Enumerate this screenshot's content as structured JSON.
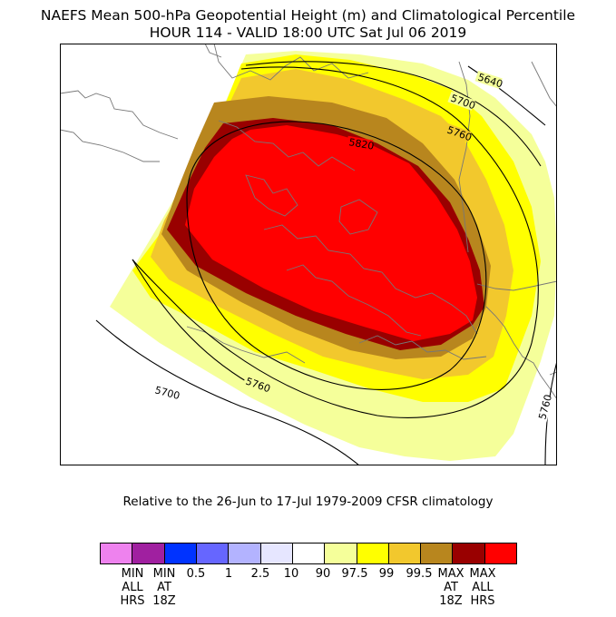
{
  "title": {
    "line1": "NAEFS Mean 500-hPa Geopotential Height (m) and Climatological Percentile",
    "line2": "HOUR 114 - VALID 18:00 UTC Sat Jul 06 2019"
  },
  "subtitle": "Relative to the 26-Jun to 17-Jul 1979-2009 CFSR climatology",
  "contours": {
    "c5640": "5640",
    "c5700_top": "5700",
    "c5760_top": "5760",
    "c5820": "5820",
    "c5700_bottom": "5700",
    "c5760_bottom": "5760",
    "c5760_right": "5760"
  },
  "legend": {
    "swatches": [
      {
        "name": "min-all-hrs",
        "color": "#ee82ee"
      },
      {
        "name": "min-at-18z",
        "color": "#a020a0"
      },
      {
        "name": "pct-0-5",
        "color": "#0033ff"
      },
      {
        "name": "pct-1",
        "color": "#6666ff"
      },
      {
        "name": "pct-2-5",
        "color": "#b3b3ff"
      },
      {
        "name": "pct-10",
        "color": "#e6e6ff"
      },
      {
        "name": "pct-90",
        "color": "#ffffff"
      },
      {
        "name": "pct-97-5",
        "color": "#f5ff9a"
      },
      {
        "name": "pct-99",
        "color": "#ffff00"
      },
      {
        "name": "pct-99-5",
        "color": "#f2c82d"
      },
      {
        "name": "max-at-18z",
        "color": "#b8861e"
      },
      {
        "name": "max-all-hrs-dark",
        "color": "#990000"
      },
      {
        "name": "max-all-hrs",
        "color": "#ff0000"
      }
    ],
    "labels": {
      "min_all_hrs": "MIN\nALL\nHRS",
      "min_at_18z": "MIN\nAT\n18Z",
      "p0_5": "0.5",
      "p1": "1",
      "p2_5": "2.5",
      "p10": "10",
      "p90": "90",
      "p97_5": "97.5",
      "p99": "99",
      "p99_5": "99.5",
      "max_at_18z": "MAX\nAT\n18Z",
      "max_all_hrs": "MAX\nALL\nHRS"
    }
  },
  "colors": {
    "c97_5": "#f5ff9a",
    "c99": "#ffff00",
    "c99_5": "#f2c82d",
    "cmax18": "#b8861e",
    "cdark": "#990000",
    "cmax": "#ff0000",
    "coast": "#777777"
  }
}
